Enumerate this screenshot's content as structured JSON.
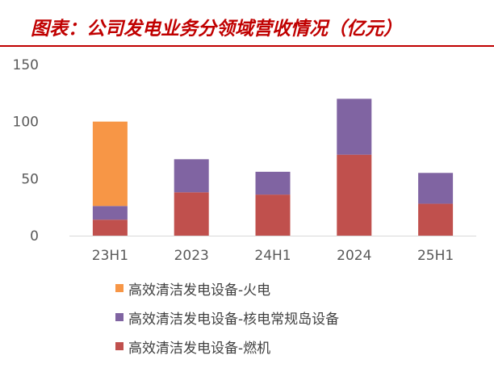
{
  "title": "图表：公司发电业务分领域营收情况（亿元）",
  "chart_data": {
    "type": "bar",
    "stacked": true,
    "categories": [
      "23H1",
      "2023",
      "24H1",
      "2024",
      "25H1"
    ],
    "ylim": [
      0,
      150
    ],
    "yticks": [
      0,
      50,
      100,
      150
    ],
    "grid": false,
    "legend_position": "bottom",
    "series": [
      {
        "name": "高效清洁发电设备-燃机",
        "color": "#c0504d",
        "values": [
          14,
          38,
          36,
          71,
          28
        ]
      },
      {
        "name": "高效清洁发电设备-核电常规岛设备",
        "color": "#8064a2",
        "values": [
          12,
          29,
          20,
          49,
          27
        ]
      },
      {
        "name": "高效清洁发电设备-火电",
        "color": "#f79646",
        "values": [
          74,
          0,
          0,
          0,
          0
        ]
      }
    ]
  }
}
